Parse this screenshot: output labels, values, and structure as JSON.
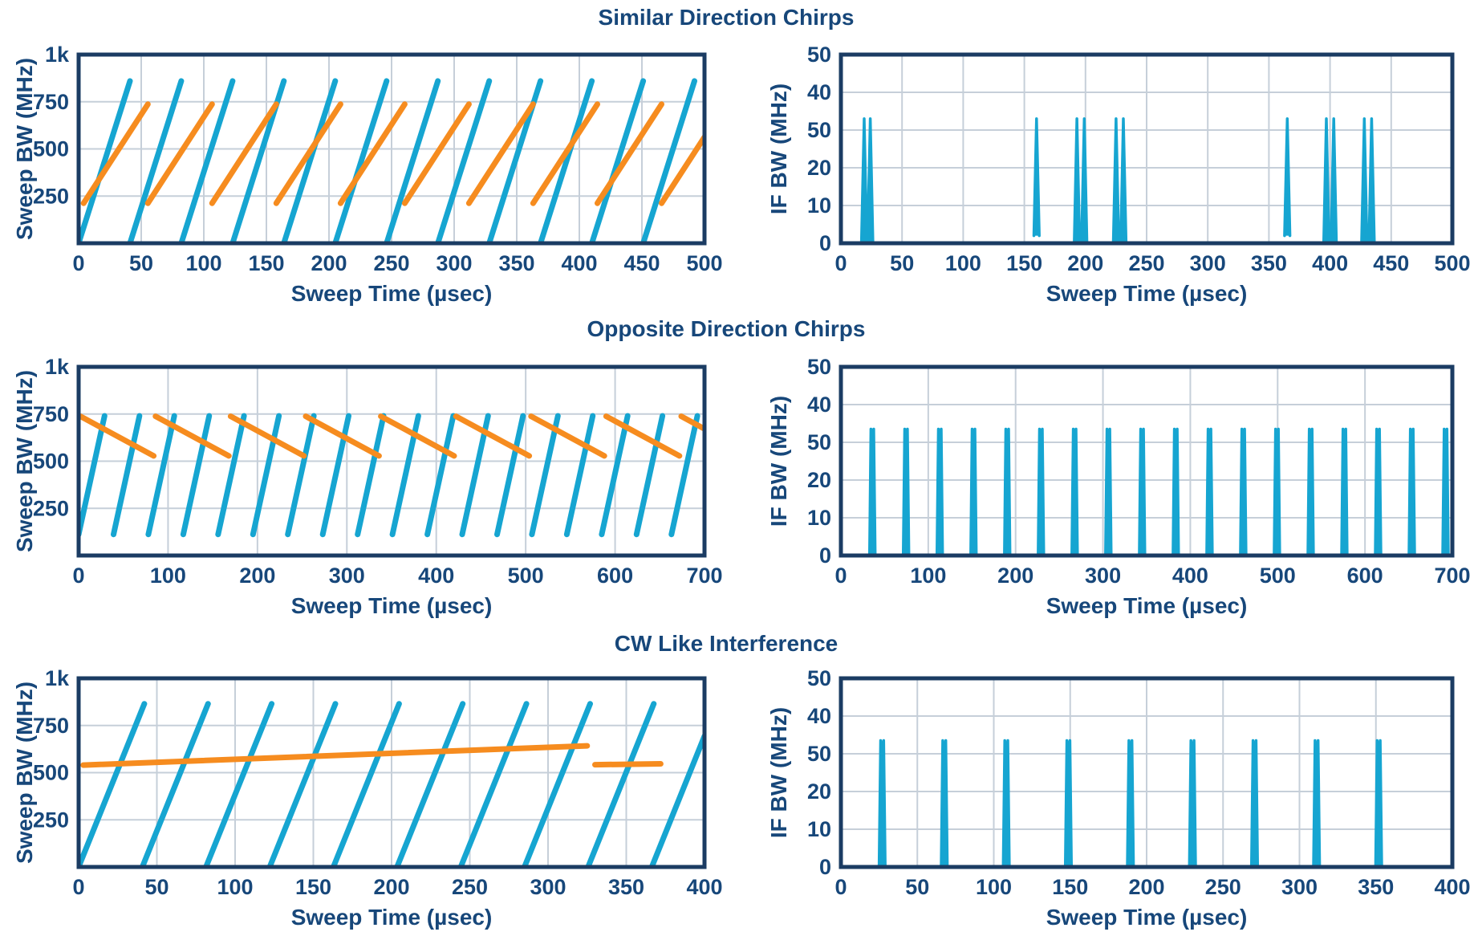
{
  "figure": {
    "colors": {
      "navy_text": "#17477a",
      "navy_border": "#1b3c63",
      "blue_line": "#16a5d1",
      "orange_line": "#f68c1f",
      "gridline": "#c6cfd9",
      "background": "#ffffff"
    },
    "rows": [
      {
        "title": "Similar Direction Chirps"
      },
      {
        "title": "Opposite Direction Chirps"
      },
      {
        "title": "CW Like Interference"
      }
    ]
  },
  "chart_data": [
    {
      "id": "similar-direction-sweep",
      "type": "line",
      "group_title": "Similar Direction Chirps",
      "xlabel": "Sweep Time (µsec)",
      "ylabel": "Sweep BW (MHz)",
      "xlim": [
        0,
        500
      ],
      "ylim": [
        0,
        1000
      ],
      "xticks": [
        {
          "v": 0,
          "l": "0"
        },
        {
          "v": 50,
          "l": "50"
        },
        {
          "v": 100,
          "l": "100"
        },
        {
          "v": 150,
          "l": "150"
        },
        {
          "v": 200,
          "l": "200"
        },
        {
          "v": 250,
          "l": "250"
        },
        {
          "v": 300,
          "l": "300"
        },
        {
          "v": 350,
          "l": "350"
        },
        {
          "v": 400,
          "l": "400"
        },
        {
          "v": 450,
          "l": "450"
        },
        {
          "v": 500,
          "l": "500"
        }
      ],
      "yticks": [
        {
          "v": 250,
          "l": "250"
        },
        {
          "v": 500,
          "l": "500"
        },
        {
          "v": 750,
          "l": "750"
        },
        {
          "v": 1000,
          "l": "1k"
        }
      ],
      "grid": true,
      "series": [
        {
          "name": "victim_chirp",
          "color": "blue_line",
          "segments": [
            [
              0,
              0,
              41,
              860
            ],
            [
              41,
              0,
              82,
              860
            ],
            [
              82,
              0,
              123,
              860
            ],
            [
              123,
              0,
              164,
              860
            ],
            [
              164,
              0,
              205,
              860
            ],
            [
              205,
              0,
              246,
              860
            ],
            [
              246,
              0,
              287,
              860
            ],
            [
              287,
              0,
              328,
              860
            ],
            [
              328,
              0,
              369,
              860
            ],
            [
              369,
              0,
              410,
              860
            ],
            [
              410,
              0,
              451,
              860
            ],
            [
              451,
              0,
              492,
              860
            ]
          ]
        },
        {
          "name": "interference_chirp",
          "color": "orange_line",
          "segments": [
            [
              4,
              212,
              55.3,
              737
            ],
            [
              55.3,
              212,
              106.6,
              737
            ],
            [
              106.6,
              212,
              157.9,
              737
            ],
            [
              157.9,
              212,
              209.2,
              737
            ],
            [
              209.2,
              212,
              260.5,
              737
            ],
            [
              260.5,
              212,
              311.8,
              737
            ],
            [
              311.8,
              212,
              363.1,
              737
            ],
            [
              363.1,
              212,
              414.4,
              737
            ],
            [
              414.4,
              212,
              465.7,
              737
            ],
            [
              465.7,
              212,
              500,
              563
            ]
          ]
        }
      ]
    },
    {
      "id": "similar-direction-ifbw",
      "type": "line",
      "group_title": "Similar Direction Chirps",
      "xlabel": "Sweep Time (µsec)",
      "ylabel": "IF BW (MHz)",
      "xlim": [
        0,
        500
      ],
      "ylim": [
        0,
        50
      ],
      "xticks": [
        {
          "v": 0,
          "l": "0"
        },
        {
          "v": 50,
          "l": "50"
        },
        {
          "v": 100,
          "l": "100"
        },
        {
          "v": 150,
          "l": "150"
        },
        {
          "v": 200,
          "l": "200"
        },
        {
          "v": 250,
          "l": "250"
        },
        {
          "v": 300,
          "l": "300"
        },
        {
          "v": 350,
          "l": "350"
        },
        {
          "v": 400,
          "l": "400"
        },
        {
          "v": 450,
          "l": "450"
        },
        {
          "v": 500,
          "l": "500"
        }
      ],
      "yticks": [
        {
          "v": 0,
          "l": "0"
        },
        {
          "v": 10,
          "l": "10"
        },
        {
          "v": 20,
          "l": "20"
        },
        {
          "v": 30,
          "l": "50"
        },
        {
          "v": 40,
          "l": "40"
        },
        {
          "v": 50,
          "l": "50"
        }
      ],
      "grid": true,
      "series": [
        {
          "name": "if_response",
          "color": "blue_line",
          "spikes": {
            "style": "single",
            "peak": 33,
            "halfwidth": 2.2,
            "points": [
              {
                "t": 19,
                "base": 0
              },
              {
                "t": 24,
                "base": 0
              },
              {
                "t": 160,
                "base": 2
              },
              {
                "t": 193,
                "base": 0
              },
              {
                "t": 199,
                "base": 0
              },
              {
                "t": 225,
                "base": 0
              },
              {
                "t": 231,
                "base": 0
              },
              {
                "t": 365,
                "base": 2
              },
              {
                "t": 397,
                "base": 0
              },
              {
                "t": 403,
                "base": 0
              },
              {
                "t": 428,
                "base": 0
              },
              {
                "t": 434,
                "base": 0
              }
            ]
          }
        }
      ]
    },
    {
      "id": "opposite-direction-sweep",
      "type": "line",
      "group_title": "Opposite Direction Chirps",
      "xlabel": "Sweep Time (µsec)",
      "ylabel": "Sweep BW (MHz)",
      "xlim": [
        0,
        700
      ],
      "ylim": [
        0,
        1000
      ],
      "xticks": [
        {
          "v": 0,
          "l": "0"
        },
        {
          "v": 100,
          "l": "100"
        },
        {
          "v": 200,
          "l": "200"
        },
        {
          "v": 300,
          "l": "300"
        },
        {
          "v": 400,
          "l": "400"
        },
        {
          "v": 500,
          "l": "500"
        },
        {
          "v": 600,
          "l": "600"
        },
        {
          "v": 700,
          "l": "700"
        }
      ],
      "yticks": [
        {
          "v": 250,
          "l": "250"
        },
        {
          "v": 500,
          "l": "500"
        },
        {
          "v": 750,
          "l": "750"
        },
        {
          "v": 1000,
          "l": "1k"
        }
      ],
      "grid": true,
      "series": [
        {
          "name": "victim_chirp",
          "color": "blue_line",
          "segments": [
            [
              0,
              112,
              29,
              740
            ],
            [
              39,
              112,
              68,
              740
            ],
            [
              78,
              112,
              107,
              740
            ],
            [
              117,
              112,
              146,
              740
            ],
            [
              156,
              112,
              185,
              740
            ],
            [
              195,
              112,
              224,
              740
            ],
            [
              234,
              112,
              263,
              740
            ],
            [
              273,
              112,
              302,
              740
            ],
            [
              312,
              112,
              341,
              740
            ],
            [
              351,
              112,
              380,
              740
            ],
            [
              390,
              112,
              419,
              740
            ],
            [
              429,
              112,
              458,
              740
            ],
            [
              468,
              112,
              497,
              740
            ],
            [
              507,
              112,
              536,
              740
            ],
            [
              546,
              112,
              575,
              740
            ],
            [
              585,
              112,
              614,
              740
            ],
            [
              624,
              112,
              653,
              740
            ],
            [
              663,
              112,
              692,
              740
            ]
          ]
        },
        {
          "name": "interference_chirp",
          "color": "orange_line",
          "segments": [
            [
              2,
              738,
              84,
              528
            ],
            [
              86,
              738,
              168,
              528
            ],
            [
              170,
              738,
              252,
              528
            ],
            [
              254,
              738,
              336,
              528
            ],
            [
              338,
              738,
              420,
              528
            ],
            [
              422,
              738,
              504,
              528
            ],
            [
              506,
              738,
              588,
              528
            ],
            [
              590,
              738,
              672,
              528
            ],
            [
              674,
              738,
              700,
              671
            ]
          ]
        }
      ]
    },
    {
      "id": "opposite-direction-ifbw",
      "type": "line",
      "group_title": "Opposite Direction Chirps",
      "xlabel": "Sweep Time (µsec)",
      "ylabel": "IF BW (MHz)",
      "xlim": [
        0,
        700
      ],
      "ylim": [
        0,
        50
      ],
      "xticks": [
        {
          "v": 0,
          "l": "0"
        },
        {
          "v": 100,
          "l": "100"
        },
        {
          "v": 200,
          "l": "200"
        },
        {
          "v": 300,
          "l": "300"
        },
        {
          "v": 400,
          "l": "400"
        },
        {
          "v": 500,
          "l": "500"
        },
        {
          "v": 600,
          "l": "600"
        },
        {
          "v": 700,
          "l": "700"
        }
      ],
      "yticks": [
        {
          "v": 0,
          "l": "0"
        },
        {
          "v": 10,
          "l": "10"
        },
        {
          "v": 20,
          "l": "20"
        },
        {
          "v": 30,
          "l": "50"
        },
        {
          "v": 40,
          "l": "40"
        },
        {
          "v": 50,
          "l": "50"
        }
      ],
      "grid": true,
      "series": [
        {
          "name": "if_response",
          "color": "blue_line",
          "spikes": {
            "style": "double",
            "peak": 33.5,
            "halfwidth": 3.2,
            "tip_offset": 1.6,
            "notch": 3.5,
            "points": [
              {
                "t": 36
              },
              {
                "t": 74.6
              },
              {
                "t": 113.2
              },
              {
                "t": 151.8
              },
              {
                "t": 190.4
              },
              {
                "t": 229
              },
              {
                "t": 267.6
              },
              {
                "t": 306.2
              },
              {
                "t": 344.8
              },
              {
                "t": 383.4
              },
              {
                "t": 422
              },
              {
                "t": 460.6
              },
              {
                "t": 499.2
              },
              {
                "t": 537.8
              },
              {
                "t": 576.4
              },
              {
                "t": 615
              },
              {
                "t": 653.6
              },
              {
                "t": 692.2
              }
            ]
          }
        }
      ]
    },
    {
      "id": "cw-like-sweep",
      "type": "line",
      "group_title": "CW Like Interference",
      "xlabel": "Sweep Time (µsec)",
      "ylabel": "Sweep BW (MHz)",
      "xlim": [
        0,
        400
      ],
      "ylim": [
        0,
        1000
      ],
      "xticks": [
        {
          "v": 0,
          "l": "0"
        },
        {
          "v": 50,
          "l": "50"
        },
        {
          "v": 100,
          "l": "100"
        },
        {
          "v": 150,
          "l": "150"
        },
        {
          "v": 200,
          "l": "200"
        },
        {
          "v": 250,
          "l": "250"
        },
        {
          "v": 300,
          "l": "300"
        },
        {
          "v": 350,
          "l": "350"
        },
        {
          "v": 400,
          "l": "400"
        }
      ],
      "yticks": [
        {
          "v": 250,
          "l": "250"
        },
        {
          "v": 500,
          "l": "500"
        },
        {
          "v": 750,
          "l": "750"
        },
        {
          "v": 1000,
          "l": "1k"
        }
      ],
      "grid": true,
      "series": [
        {
          "name": "victim_chirp",
          "color": "blue_line",
          "segments": [
            [
              0,
              0,
              42,
              865
            ],
            [
              40.7,
              0,
              82.7,
              865
            ],
            [
              81.4,
              0,
              123.4,
              865
            ],
            [
              122.1,
              0,
              164.1,
              865
            ],
            [
              162.8,
              0,
              204.8,
              865
            ],
            [
              203.5,
              0,
              245.5,
              865
            ],
            [
              244.2,
              0,
              286.2,
              865
            ],
            [
              284.9,
              0,
              326.9,
              865
            ],
            [
              325.6,
              0,
              367.6,
              865
            ],
            [
              366.3,
              0,
              400,
              694
            ]
          ]
        },
        {
          "name": "interference_chirp",
          "color": "orange_line",
          "segments": [
            [
              3,
              540,
              325,
              642
            ],
            [
              330,
              542,
              372,
              547
            ]
          ]
        }
      ]
    },
    {
      "id": "cw-like-ifbw",
      "type": "line",
      "group_title": "CW Like Interference",
      "xlabel": "Sweep Time (µsec)",
      "ylabel": "IF BW (MHz)",
      "xlim": [
        0,
        400
      ],
      "ylim": [
        0,
        50
      ],
      "xticks": [
        {
          "v": 0,
          "l": "0"
        },
        {
          "v": 50,
          "l": "50"
        },
        {
          "v": 100,
          "l": "100"
        },
        {
          "v": 150,
          "l": "150"
        },
        {
          "v": 200,
          "l": "200"
        },
        {
          "v": 250,
          "l": "250"
        },
        {
          "v": 300,
          "l": "300"
        },
        {
          "v": 350,
          "l": "350"
        },
        {
          "v": 400,
          "l": "400"
        }
      ],
      "yticks": [
        {
          "v": 0,
          "l": "0"
        },
        {
          "v": 10,
          "l": "10"
        },
        {
          "v": 20,
          "l": "20"
        },
        {
          "v": 30,
          "l": "50"
        },
        {
          "v": 40,
          "l": "40"
        },
        {
          "v": 50,
          "l": "50"
        }
      ],
      "grid": true,
      "series": [
        {
          "name": "if_response",
          "color": "blue_line",
          "spikes": {
            "style": "double",
            "peak": 33.5,
            "halfwidth": 2.0,
            "tip_offset": 1.0,
            "notch": 3.5,
            "points": [
              {
                "t": 27
              },
              {
                "t": 67.6
              },
              {
                "t": 108.2
              },
              {
                "t": 148.8
              },
              {
                "t": 189.4
              },
              {
                "t": 230
              },
              {
                "t": 270.6
              },
              {
                "t": 311.2
              },
              {
                "t": 351.8
              }
            ]
          }
        }
      ]
    }
  ]
}
